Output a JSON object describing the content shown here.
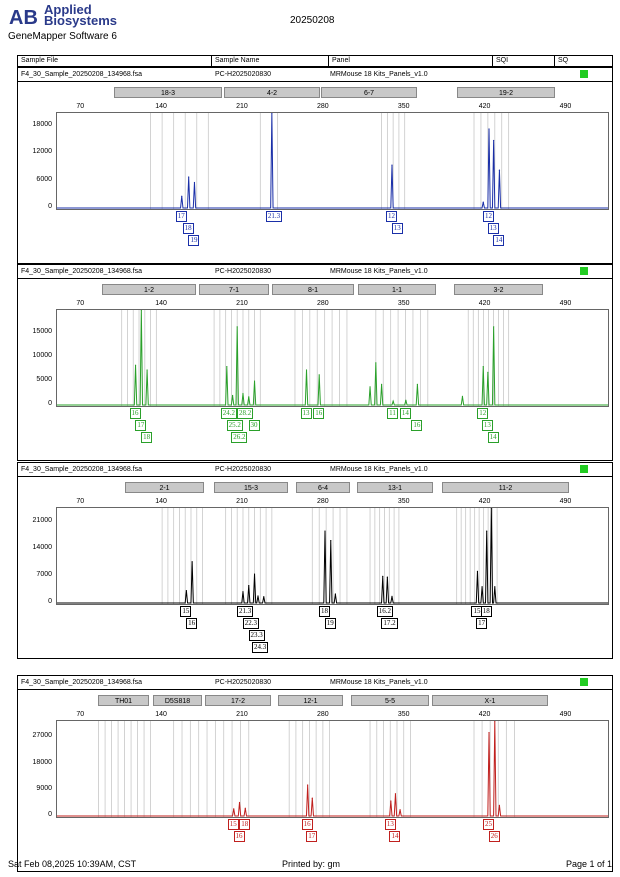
{
  "header": {
    "brand_line1": "Applied",
    "brand_line2": "Biosystems",
    "software": "GeneMapper Software 6",
    "date": "20250208"
  },
  "columns": {
    "sample_file": "Sample File",
    "sample_name": "Sample Name",
    "panel": "Panel",
    "sqi": "SQI",
    "sq": "SQ"
  },
  "footer": {
    "timestamp": "Sat Feb 08,2025 10:39AM, CST",
    "printed_by": "Printed by: gm",
    "page": "Page 1 of 1"
  },
  "colors": {
    "blue": "#1a2fa8",
    "green": "#2aa02a",
    "black": "#000000",
    "red": "#c0201e",
    "quality": "#22cc22"
  },
  "chart_data": [
    {
      "type": "line",
      "dye": "blue",
      "sample_file": "F4_30_Sample_20250208_134968.fsa",
      "sample_name": "PC-H2025020830",
      "panel": "MRMouse 18 Kits_Panels_v1.0",
      "markers": [
        "18-3",
        "4-2",
        "6-7",
        "19-2"
      ],
      "x_ticks": [
        70,
        140,
        210,
        280,
        350,
        420,
        490
      ],
      "y_ticks": [
        0,
        6000,
        12000,
        18000
      ],
      "ylim": [
        0,
        21000
      ],
      "peaks": [
        [
          157,
          2800
        ],
        [
          163,
          7000
        ],
        [
          168,
          5800
        ],
        [
          235,
          22000
        ],
        [
          339,
          9600
        ],
        [
          418,
          1500
        ],
        [
          423,
          17500
        ],
        [
          427,
          15000
        ],
        [
          432,
          8500
        ]
      ],
      "alleles": [
        {
          "text": "17",
          "x": 157,
          "row": 0
        },
        {
          "text": "18",
          "x": 163,
          "row": 1
        },
        {
          "text": "19",
          "x": 168,
          "row": 2
        },
        {
          "text": "21.3",
          "x": 235,
          "row": 0
        },
        {
          "text": "12",
          "x": 339,
          "row": 0
        },
        {
          "text": "13",
          "x": 344,
          "row": 1
        },
        {
          "text": "12",
          "x": 423,
          "row": 0
        },
        {
          "text": "13",
          "x": 427,
          "row": 1
        },
        {
          "text": "14",
          "x": 432,
          "row": 2
        }
      ]
    },
    {
      "type": "line",
      "dye": "green",
      "sample_file": "F4_30_Sample_20250208_134968.fsa",
      "sample_name": "PC-H2025020830",
      "panel": "MRMouse 18 Kits_Panels_v1.0",
      "markers": [
        "1-2",
        "7-1",
        "8-1",
        "1-1",
        "3-2"
      ],
      "x_ticks": [
        70,
        140,
        210,
        280,
        350,
        420,
        490
      ],
      "y_ticks": [
        0,
        5000,
        10000,
        15000
      ],
      "ylim": [
        0,
        20000
      ],
      "peaks": [
        [
          117,
          8500
        ],
        [
          122,
          20000
        ],
        [
          127,
          7500
        ],
        [
          196,
          8200
        ],
        [
          201,
          2200
        ],
        [
          205,
          16500
        ],
        [
          210,
          2600
        ],
        [
          215,
          1900
        ],
        [
          220,
          5200
        ],
        [
          265,
          7500
        ],
        [
          276,
          6500
        ],
        [
          320,
          4000
        ],
        [
          325,
          9000
        ],
        [
          330,
          4500
        ],
        [
          340,
          1000
        ],
        [
          351,
          1200
        ],
        [
          361,
          4500
        ],
        [
          400,
          2000
        ],
        [
          418,
          8200
        ],
        [
          422,
          7000
        ],
        [
          427,
          16500
        ]
      ],
      "alleles": [
        {
          "text": "16",
          "x": 117,
          "row": 0
        },
        {
          "text": "17",
          "x": 122,
          "row": 1
        },
        {
          "text": "18",
          "x": 127,
          "row": 2
        },
        {
          "text": "24.2",
          "x": 196,
          "row": 0
        },
        {
          "text": "25.2",
          "x": 201,
          "row": 1
        },
        {
          "text": "26.2",
          "x": 205,
          "row": 2
        },
        {
          "text": "28.2",
          "x": 210,
          "row": 0
        },
        {
          "text": "30",
          "x": 220,
          "row": 1
        },
        {
          "text": "13",
          "x": 265,
          "row": 0
        },
        {
          "text": "16",
          "x": 276,
          "row": 0
        },
        {
          "text": "11",
          "x": 340,
          "row": 0
        },
        {
          "text": "14",
          "x": 351,
          "row": 0
        },
        {
          "text": "16",
          "x": 361,
          "row": 1
        },
        {
          "text": "12",
          "x": 418,
          "row": 0
        },
        {
          "text": "13",
          "x": 422,
          "row": 1
        },
        {
          "text": "14",
          "x": 427,
          "row": 2
        }
      ]
    },
    {
      "type": "line",
      "dye": "black",
      "sample_file": "F4_30_Sample_20250208_134968.fsa",
      "sample_name": "PC-H2025020830",
      "panel": "MRMouse 18 Kits_Panels_v1.0",
      "markers": [
        "2-1",
        "15-3",
        "6-4",
        "13-1",
        "11-2"
      ],
      "x_ticks": [
        70,
        140,
        210,
        280,
        350,
        420,
        490
      ],
      "y_ticks": [
        0,
        7000,
        14000,
        21000
      ],
      "ylim": [
        0,
        25000
      ],
      "peaks": [
        [
          161,
          3500
        ],
        [
          166,
          11000
        ],
        [
          210,
          3200
        ],
        [
          215,
          4800
        ],
        [
          220,
          7800
        ],
        [
          223,
          2100
        ],
        [
          228,
          1900
        ],
        [
          281,
          19000
        ],
        [
          286,
          16500
        ],
        [
          290,
          2600
        ],
        [
          331,
          7200
        ],
        [
          335,
          7000
        ],
        [
          339,
          2000
        ],
        [
          413,
          8500
        ],
        [
          417,
          4500
        ],
        [
          421,
          19000
        ],
        [
          425,
          25000
        ],
        [
          428,
          4500
        ]
      ],
      "alleles": [
        {
          "text": "15",
          "x": 161,
          "row": 0
        },
        {
          "text": "16",
          "x": 166,
          "row": 1
        },
        {
          "text": "21.3",
          "x": 210,
          "row": 0
        },
        {
          "text": "22.3",
          "x": 215,
          "row": 1
        },
        {
          "text": "23.3",
          "x": 220,
          "row": 2
        },
        {
          "text": "24.3",
          "x": 223,
          "row": 3
        },
        {
          "text": "18",
          "x": 281,
          "row": 0
        },
        {
          "text": "19",
          "x": 286,
          "row": 1
        },
        {
          "text": "16.2",
          "x": 331,
          "row": 0
        },
        {
          "text": "17.2",
          "x": 335,
          "row": 1
        },
        {
          "text": "15",
          "x": 413,
          "row": 0
        },
        {
          "text": "18",
          "x": 421,
          "row": 0
        },
        {
          "text": "17",
          "x": 417,
          "row": 1
        }
      ]
    },
    {
      "type": "line",
      "dye": "red",
      "sample_file": "F4_30_Sample_20250208_134968.fsa",
      "sample_name": "PC-H2025020830",
      "panel": "MRMouse 18 Kits_Panels_v1.0",
      "markers": [
        "TH01",
        "D5S818",
        "17-2",
        "12-1",
        "5-5",
        "X-1"
      ],
      "x_ticks": [
        70,
        140,
        210,
        280,
        350,
        420,
        490
      ],
      "y_ticks": [
        0,
        9000,
        18000,
        27000
      ],
      "ylim": [
        0,
        33000
      ],
      "peaks": [
        [
          202,
          2800
        ],
        [
          207,
          5000
        ],
        [
          212,
          3000
        ],
        [
          266,
          11000
        ],
        [
          270,
          6500
        ],
        [
          338,
          5500
        ],
        [
          342,
          8000
        ],
        [
          346,
          2500
        ],
        [
          423,
          29000
        ],
        [
          428,
          33000
        ],
        [
          432,
          4000
        ]
      ],
      "alleles": [
        {
          "text": "15",
          "x": 202,
          "row": 0
        },
        {
          "text": "18",
          "x": 212,
          "row": 0
        },
        {
          "text": "16",
          "x": 207,
          "row": 1
        },
        {
          "text": "16",
          "x": 266,
          "row": 0
        },
        {
          "text": "17",
          "x": 270,
          "row": 1
        },
        {
          "text": "13",
          "x": 338,
          "row": 0
        },
        {
          "text": "14",
          "x": 342,
          "row": 1
        },
        {
          "text": "25",
          "x": 423,
          "row": 0
        },
        {
          "text": "26",
          "x": 428,
          "row": 1
        }
      ]
    }
  ]
}
